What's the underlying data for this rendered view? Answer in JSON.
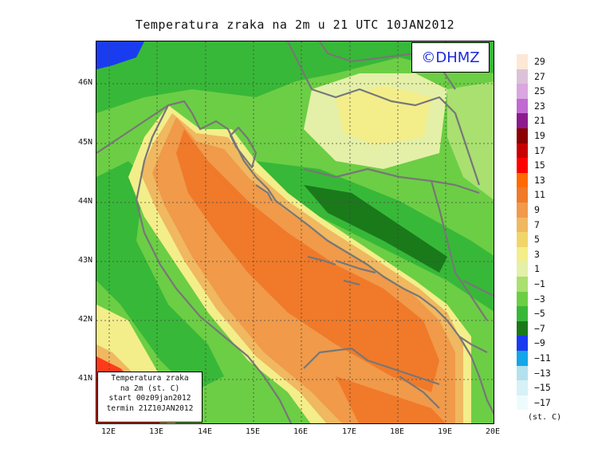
{
  "title": "Temperatura zraka na 2m u 21 UTC 10JAN2012",
  "watermark": "©DHMZ",
  "info_box": {
    "line1": "Temperatura zraka",
    "line2": "na 2m (st. C)",
    "line3": "start 00z09jan2012",
    "line4": "termin 21Z10JAN2012"
  },
  "lat_labels": [
    "46N",
    "45N",
    "44N",
    "43N",
    "42N",
    "41N"
  ],
  "lon_labels": [
    "12E",
    "13E",
    "14E",
    "15E",
    "16E",
    "17E",
    "18E",
    "19E",
    "20E"
  ],
  "legend": {
    "unit": "(st. C)",
    "labels": [
      "29",
      "27",
      "25",
      "23",
      "21",
      "19",
      "17",
      "15",
      "13",
      "11",
      "9",
      "7",
      "5",
      "3",
      "1",
      "−1",
      "−3",
      "−5",
      "−7",
      "−9",
      "−11",
      "−13",
      "−15",
      "−17"
    ],
    "colors": [
      "#fde8d6",
      "#dcc2d8",
      "#d9a6e0",
      "#c06ad2",
      "#8d1a8d",
      "#8b0000",
      "#c80000",
      "#ff0000",
      "#ff6a00",
      "#f07a2a",
      "#f09a4a",
      "#f0b860",
      "#f0d56a",
      "#f3ee8a",
      "#e4f0a8",
      "#a9e070",
      "#6cce45",
      "#38b838",
      "#1a7a1a",
      "#1a3cf0",
      "#14a6e8",
      "#b4e1ee",
      "#d7f1f6",
      "#eefbfd"
    ]
  },
  "map_colors": {
    "sea_hot": "#f07a2a",
    "sea_mid": "#f09a4a",
    "coast_warm": "#f0b860",
    "coast_mild": "#f3ee8a",
    "plain": "#e4f0a8",
    "land_light": "#a9e070",
    "land_mid": "#6cce45",
    "land_dark": "#38b838",
    "land_darkest": "#1a7a1a",
    "cold_blue": "#1a3cf0",
    "warm_red": "#ff3a1a",
    "border": "#777777"
  }
}
